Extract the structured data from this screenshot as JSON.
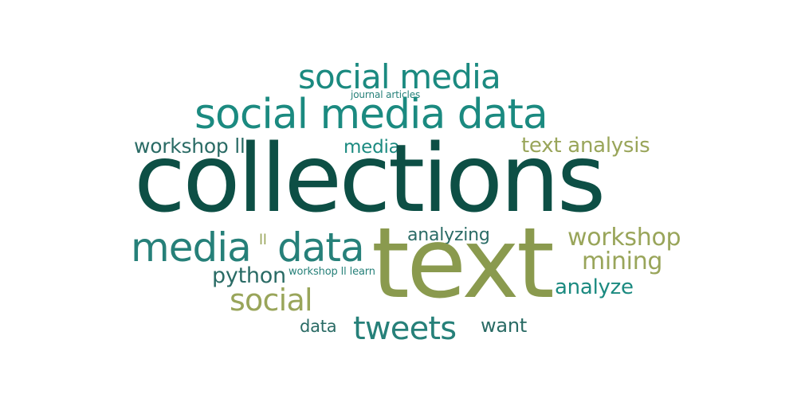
{
  "colors": {
    "dark_green": "#0d4f45",
    "teal": "#1b8a80",
    "mid_teal": "#268079",
    "dark_teal": "#2a6b65",
    "olive": "#99a55a",
    "olive_dark": "#8a9a4e"
  },
  "words": {
    "collections": "collections",
    "text": "text",
    "social_media_data": "social media data",
    "social_media": "social media",
    "journal_articles": "journal articles",
    "workshop_ll_1": "workshop ll",
    "media_small": "media",
    "text_analysis": "text analysis",
    "media": "media",
    "ll": "ll",
    "data": "data",
    "analyzing": "analyzing",
    "workshop": "workshop",
    "mining": "mining",
    "python": "python",
    "workshop_ll_learn": "workshop ll learn",
    "analyze": "analyze",
    "social": "social",
    "data_small": "data",
    "tweets": "tweets",
    "want": "want"
  }
}
